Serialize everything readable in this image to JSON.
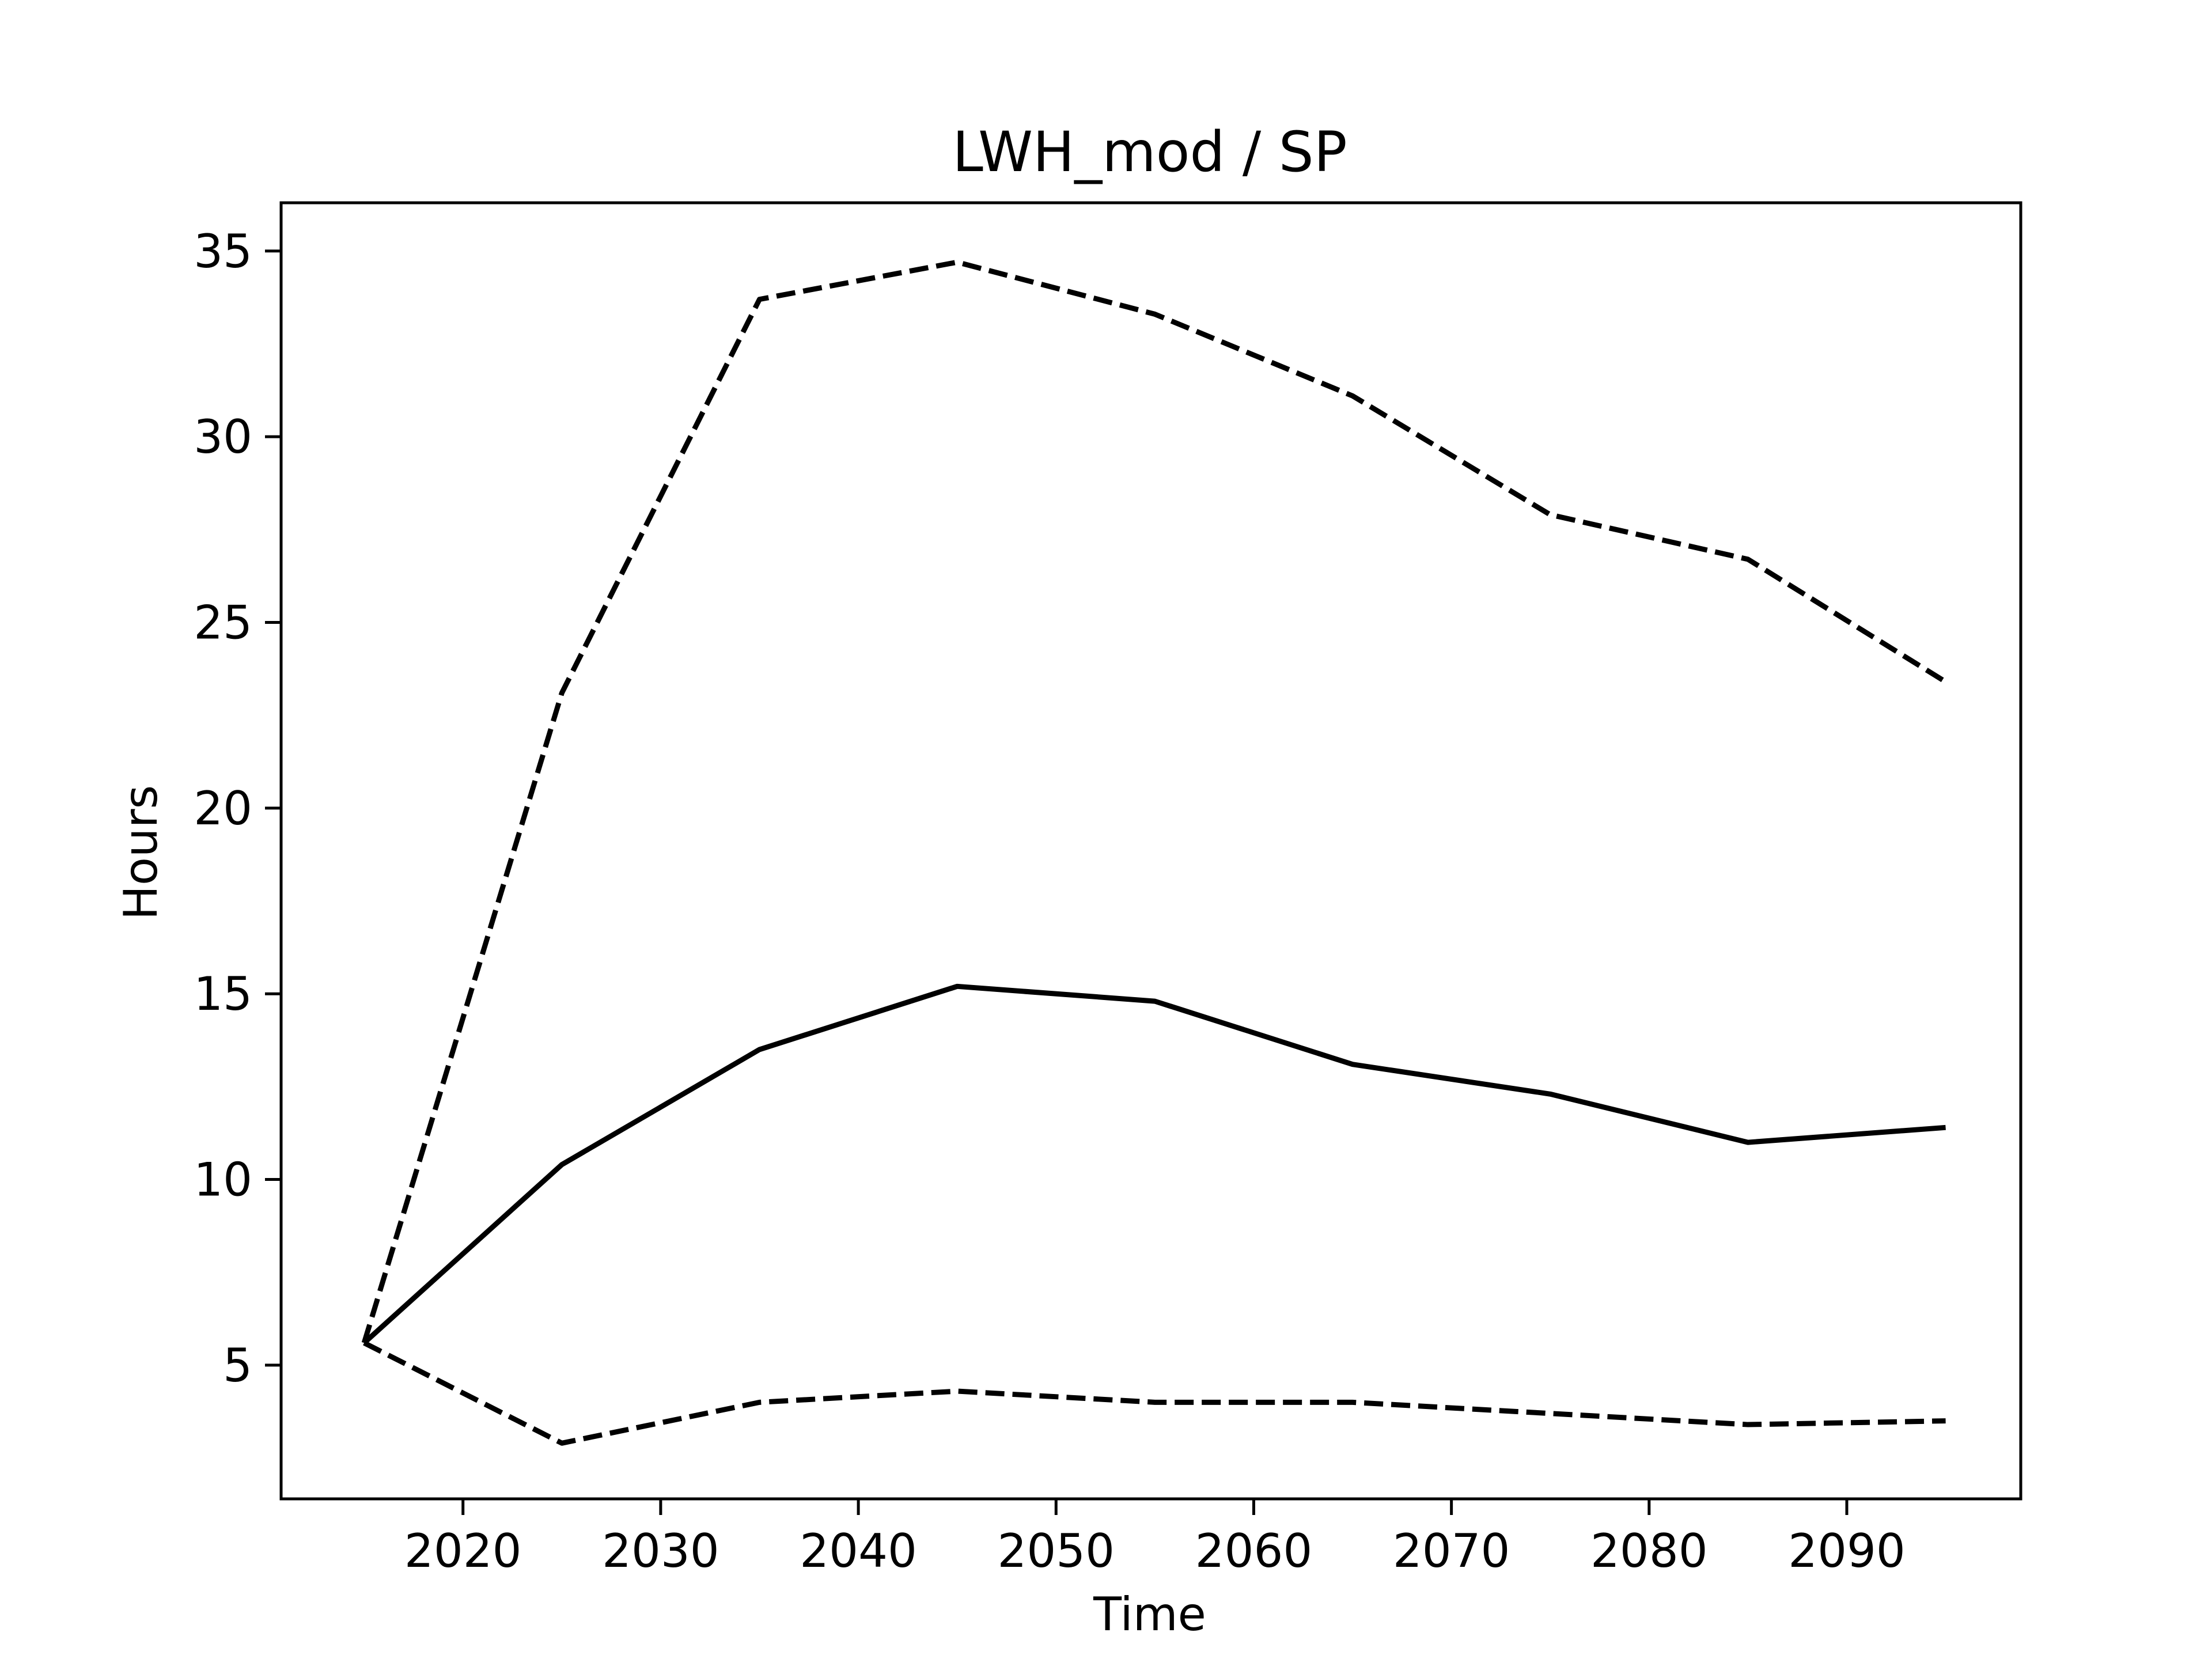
{
  "chart_data": {
    "type": "line",
    "title": "LWH_mod / SP",
    "xlabel": "Time",
    "ylabel": "Hours",
    "xlim": [
      2010.8,
      2098.8
    ],
    "ylim": [
      1.4,
      36.3
    ],
    "xticks": [
      2020,
      2030,
      2040,
      2050,
      2060,
      2070,
      2080,
      2090
    ],
    "yticks": [
      5,
      10,
      15,
      20,
      25,
      30,
      35
    ],
    "grid": false,
    "legend": "none",
    "x": [
      2015,
      2025,
      2035,
      2045,
      2055,
      2065,
      2075,
      2085,
      2095
    ],
    "series": [
      {
        "style": "dashed",
        "color": "#000000",
        "values": [
          5.6,
          23.1,
          33.7,
          34.7,
          33.3,
          31.1,
          27.9,
          26.7,
          23.4
        ]
      },
      {
        "style": "solid",
        "color": "#000000",
        "values": [
          5.6,
          10.4,
          13.5,
          15.2,
          14.8,
          13.1,
          12.3,
          11.0,
          11.4
        ]
      },
      {
        "style": "dashed",
        "color": "#000000",
        "values": [
          5.6,
          2.9,
          4.0,
          4.3,
          4.0,
          4.0,
          3.7,
          3.4,
          3.5
        ]
      }
    ]
  }
}
